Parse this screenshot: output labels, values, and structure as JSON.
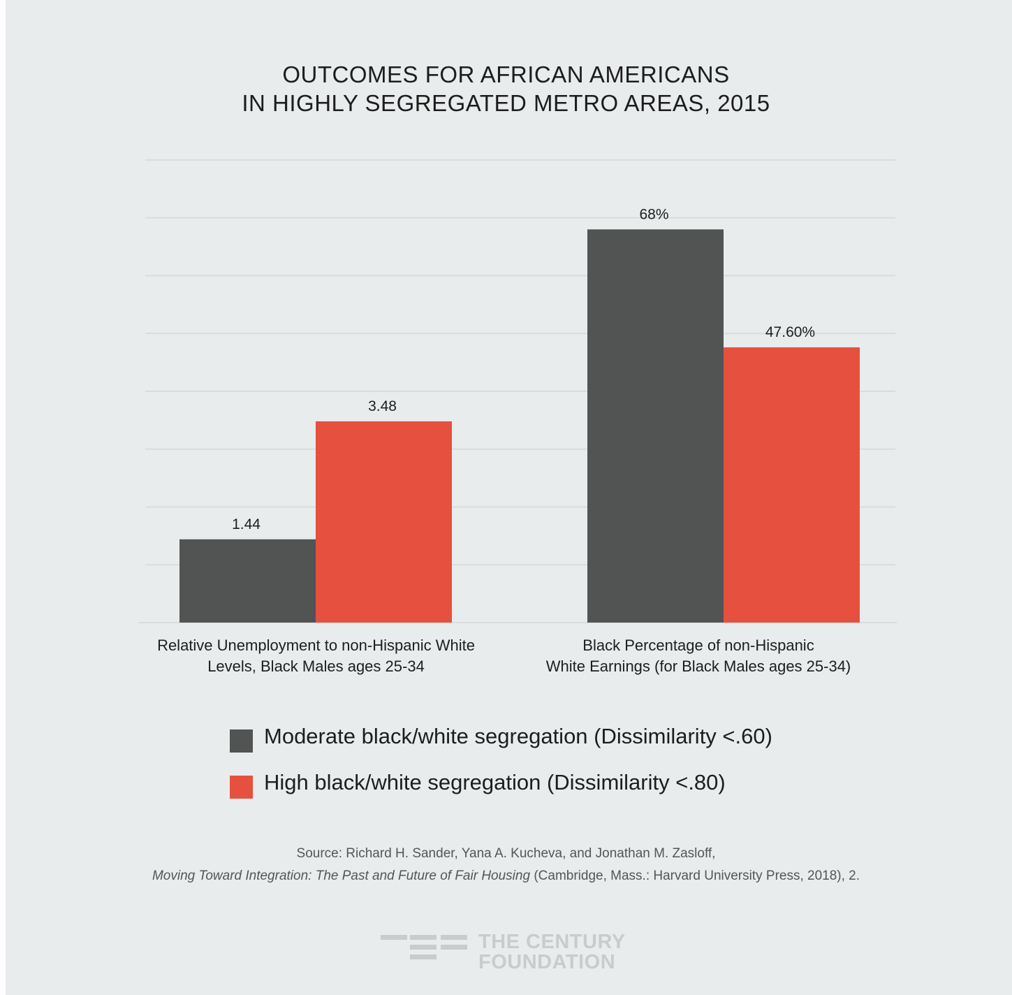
{
  "colors": {
    "moderate": "#525353",
    "high": "#e6503e",
    "grid": "#d9dcdc",
    "background": "#e9ecec",
    "text": "#1d1d1d",
    "logo": "#c9cccc"
  },
  "title": {
    "line1": "OUTCOMES FOR AFRICAN AMERICANS",
    "line2": "IN HIGHLY SEGREGATED METRO AREAS, 2015"
  },
  "chart_data": {
    "type": "bar",
    "title": "OUTCOMES FOR AFRICAN AMERICANS IN HIGHLY SEGREGATED METRO AREAS, 2015",
    "categories": [
      {
        "line1": "Relative Unemployment to non-Hispanic White",
        "line2": "Levels, Black Males ages 25-34",
        "bars": [
          {
            "series": "moderate",
            "value": 1.44,
            "label": "1.44"
          },
          {
            "series": "high",
            "value": 3.48,
            "label": "3.48"
          }
        ],
        "scale_max": 8
      },
      {
        "line1": "Black Percentage of non-Hispanic",
        "line2": "White Earnings (for Black Males ages 25-34)",
        "bars": [
          {
            "series": "moderate",
            "value": 68,
            "label": "68%"
          },
          {
            "series": "high",
            "value": 47.6,
            "label": "47.60%"
          }
        ],
        "scale_max": 80
      }
    ],
    "series": [
      {
        "key": "moderate",
        "name": "Moderate black/white segregation (Dissimilarity <.60)"
      },
      {
        "key": "high",
        "name": "High black/white segregation (Dissimilarity <.80)"
      }
    ],
    "gridlines": 8,
    "grid": true,
    "legend_position": "bottom"
  },
  "source": {
    "line1": "Source:  Richard H. Sander, Yana A. Kucheva, and Jonathan M. Zasloff,",
    "book_title": "Moving Toward Integration: The Past and Future of Fair Housing",
    "line2_rest": " (Cambridge, Mass.: Harvard University Press, 2018), 2."
  },
  "logo": {
    "line1": "THE CENTURY",
    "line2": "FOUNDATION"
  }
}
